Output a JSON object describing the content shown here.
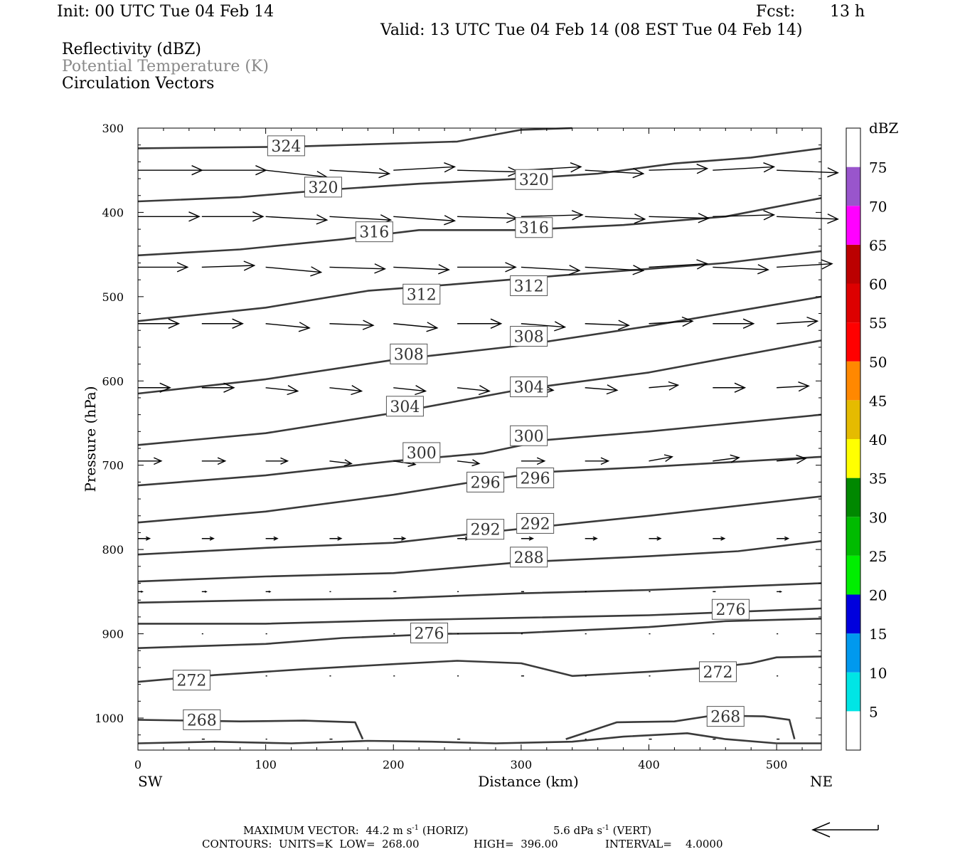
{
  "header": {
    "init": "Init: 00 UTC Tue 04 Feb 14",
    "fcst_label": "Fcst:",
    "fcst_value": "13 h",
    "valid": "Valid: 13 UTC Tue 04 Feb 14 (08 EST Tue 04 Feb 14)",
    "field1": "Reflectivity (dBZ)",
    "field2": "Potential Temperature (K)",
    "field3": "Circulation Vectors"
  },
  "footer": {
    "max_vector_label": "MAXIMUM VECTOR:",
    "max_horiz_value": "44.2",
    "max_horiz_unit": "m s",
    "max_horiz_exp": "-1",
    "max_horiz_tag": "(HORIZ)",
    "max_vert_value": "5.6",
    "max_vert_unit": "dPa s",
    "max_vert_exp": "-1",
    "max_vert_tag": "(VERT)",
    "contours_label": "CONTOURS:",
    "units": "UNITS=K",
    "low": "LOW=",
    "low_value": "268.00",
    "high": "HIGH=",
    "high_value": "396.00",
    "interval": "INTERVAL=",
    "interval_value": "4.0000"
  },
  "colors": {
    "contour": "#3a3a3a",
    "vector": "#000000",
    "label_border": "#555555"
  },
  "chart_data": {
    "type": "line",
    "xlabel": "Distance (km)",
    "ylabel": "Pressure (hPa)",
    "xlim": [
      0,
      535
    ],
    "ylim": [
      1038,
      300
    ],
    "xticks": [
      0,
      100,
      200,
      300,
      400,
      500
    ],
    "yticks": [
      300,
      400,
      500,
      600,
      700,
      800,
      900,
      1000
    ],
    "x_end_labels": {
      "left": "SW",
      "right": "NE"
    },
    "contour_interval": 4,
    "isentropes": [
      {
        "theta": 324,
        "points": [
          [
            0,
            324
          ],
          [
            120,
            322
          ],
          [
            250,
            316
          ],
          [
            300,
            302
          ],
          [
            340,
            300
          ]
        ],
        "labels": [
          [
            116,
            321
          ]
        ]
      },
      {
        "theta": 320,
        "points": [
          [
            0,
            387
          ],
          [
            80,
            382
          ],
          [
            150,
            373
          ],
          [
            220,
            366
          ],
          [
            300,
            360
          ],
          [
            360,
            354
          ],
          [
            420,
            342
          ],
          [
            480,
            335
          ],
          [
            535,
            324
          ]
        ],
        "labels": [
          [
            145,
            370
          ],
          [
            310,
            361
          ]
        ]
      },
      {
        "theta": 316,
        "points": [
          [
            0,
            451
          ],
          [
            80,
            444
          ],
          [
            160,
            432
          ],
          [
            220,
            421
          ],
          [
            300,
            421
          ],
          [
            380,
            415
          ],
          [
            460,
            405
          ],
          [
            535,
            383
          ]
        ],
        "labels": [
          [
            185,
            423
          ],
          [
            310,
            418
          ]
        ]
      },
      {
        "theta": 312,
        "points": [
          [
            0,
            529
          ],
          [
            100,
            513
          ],
          [
            180,
            493
          ],
          [
            250,
            485
          ],
          [
            330,
            475
          ],
          [
            400,
            467
          ],
          [
            460,
            460
          ],
          [
            535,
            446
          ]
        ],
        "labels": [
          [
            222,
            497
          ],
          [
            306,
            487
          ]
        ]
      },
      {
        "theta": 308,
        "points": [
          [
            0,
            615
          ],
          [
            100,
            598
          ],
          [
            200,
            575
          ],
          [
            300,
            558
          ],
          [
            400,
            535
          ],
          [
            535,
            500
          ]
        ],
        "labels": [
          [
            212,
            568
          ],
          [
            306,
            547
          ]
        ]
      },
      {
        "theta": 304,
        "points": [
          [
            0,
            676
          ],
          [
            100,
            662
          ],
          [
            200,
            638
          ],
          [
            300,
            610
          ],
          [
            400,
            590
          ],
          [
            535,
            552
          ]
        ],
        "labels": [
          [
            209,
            630
          ],
          [
            306,
            607
          ]
        ]
      },
      {
        "theta": 300,
        "points": [
          [
            0,
            724
          ],
          [
            100,
            712
          ],
          [
            200,
            695
          ],
          [
            270,
            686
          ],
          [
            320,
            670
          ],
          [
            400,
            660
          ],
          [
            535,
            640
          ]
        ],
        "labels": [
          [
            222,
            685
          ],
          [
            306,
            665
          ]
        ]
      },
      {
        "theta": 296,
        "points": [
          [
            0,
            768
          ],
          [
            100,
            755
          ],
          [
            200,
            735
          ],
          [
            270,
            718
          ],
          [
            320,
            708
          ],
          [
            400,
            702
          ],
          [
            535,
            690
          ]
        ],
        "labels": [
          [
            272,
            720
          ],
          [
            311,
            715
          ]
        ]
      },
      {
        "theta": 292,
        "points": [
          [
            0,
            806
          ],
          [
            100,
            798
          ],
          [
            200,
            792
          ],
          [
            270,
            780
          ],
          [
            400,
            760
          ],
          [
            535,
            737
          ]
        ],
        "labels": [
          [
            272,
            776
          ],
          [
            311,
            769
          ]
        ]
      },
      {
        "theta": 288,
        "points": [
          [
            0,
            838
          ],
          [
            100,
            832
          ],
          [
            200,
            828
          ],
          [
            300,
            815
          ],
          [
            400,
            808
          ],
          [
            470,
            802
          ],
          [
            535,
            790
          ]
        ],
        "labels": [
          [
            306,
            809
          ]
        ]
      },
      {
        "theta": 284,
        "points": [
          [
            0,
            863
          ],
          [
            100,
            860
          ],
          [
            200,
            858
          ],
          [
            300,
            852
          ],
          [
            400,
            848
          ],
          [
            535,
            840
          ]
        ],
        "labels": []
      },
      {
        "theta": 280,
        "points": [
          [
            0,
            888
          ],
          [
            100,
            888
          ],
          [
            200,
            884
          ],
          [
            300,
            881
          ],
          [
            400,
            878
          ],
          [
            535,
            870
          ]
        ],
        "labels": []
      },
      {
        "theta": 276,
        "points": [
          [
            0,
            917
          ],
          [
            100,
            912
          ],
          [
            160,
            905
          ],
          [
            240,
            900
          ],
          [
            300,
            899
          ],
          [
            400,
            892
          ],
          [
            460,
            885
          ],
          [
            535,
            882
          ]
        ],
        "labels": [
          [
            228,
            899
          ],
          [
            464,
            871
          ]
        ]
      },
      {
        "theta": 272,
        "points": [
          [
            0,
            957
          ],
          [
            60,
            949
          ],
          [
            130,
            942
          ],
          [
            200,
            936
          ],
          [
            250,
            932
          ],
          [
            300,
            935
          ],
          [
            340,
            950
          ],
          [
            400,
            945
          ],
          [
            450,
            940
          ],
          [
            480,
            935
          ],
          [
            500,
            928
          ],
          [
            535,
            927
          ]
        ],
        "labels": [
          [
            42,
            955
          ],
          [
            454,
            945
          ]
        ]
      },
      {
        "theta": 268,
        "points": [
          [
            0,
            1002
          ],
          [
            80,
            1004
          ],
          [
            130,
            1003
          ],
          [
            170,
            1005
          ],
          [
            176,
            1025
          ]
        ],
        "labels": [
          [
            50,
            1002
          ],
          [
            460,
            998
          ]
        ]
      },
      {
        "theta": 268,
        "points": [
          [
            335,
            1025
          ],
          [
            375,
            1005
          ],
          [
            420,
            1004
          ],
          [
            450,
            997
          ],
          [
            490,
            998
          ],
          [
            510,
            1002
          ],
          [
            514,
            1025
          ]
        ],
        "labels": []
      },
      {
        "theta": 268,
        "points": [
          [
            0,
            1030
          ],
          [
            60,
            1028
          ],
          [
            120,
            1030
          ],
          [
            180,
            1027
          ],
          [
            230,
            1028
          ],
          [
            280,
            1030
          ],
          [
            340,
            1028
          ],
          [
            380,
            1022
          ],
          [
            430,
            1018
          ],
          [
            460,
            1025
          ],
          [
            500,
            1030
          ],
          [
            535,
            1030
          ]
        ],
        "labels": []
      }
    ],
    "vector_rows": [
      {
        "p": 350,
        "x": [
          0,
          50,
          100,
          150,
          200,
          250,
          300,
          350,
          400,
          450,
          500
        ],
        "u": [
          44,
          44,
          42,
          41,
          42,
          42,
          41,
          40,
          40,
          42,
          42
        ],
        "w": [
          0,
          0,
          -0.8,
          -0.4,
          0.4,
          -0.2,
          0.4,
          -0.4,
          0.2,
          0.4,
          -0.3
        ]
      },
      {
        "p": 405,
        "x": [
          0,
          50,
          100,
          150,
          200,
          250,
          300,
          350,
          400,
          450,
          500
        ],
        "u": [
          42,
          42,
          42,
          42,
          42,
          41,
          42,
          41,
          41,
          42,
          42
        ],
        "w": [
          0,
          0,
          -0.4,
          -0.4,
          -0.5,
          -0.2,
          0.2,
          -0.3,
          -0.2,
          0.2,
          -0.3
        ]
      },
      {
        "p": 465,
        "x": [
          0,
          50,
          100,
          150,
          200,
          250,
          300,
          350,
          400,
          450,
          500
        ],
        "u": [
          34,
          36,
          38,
          38,
          38,
          40,
          40,
          40,
          40,
          38,
          38
        ],
        "w": [
          0,
          0.2,
          -0.6,
          -0.2,
          -0.3,
          0,
          -0.4,
          -0.4,
          0.4,
          -0.3,
          0.4
        ]
      },
      {
        "p": 532,
        "x": [
          0,
          50,
          100,
          150,
          200,
          250,
          300,
          350,
          400,
          450,
          500
        ],
        "u": [
          28,
          28,
          30,
          30,
          30,
          30,
          30,
          30,
          30,
          28,
          28
        ],
        "w": [
          0,
          0,
          -0.5,
          -0.2,
          -0.5,
          0,
          -0.4,
          -0.2,
          0.3,
          0,
          0.3
        ]
      },
      {
        "p": 608,
        "x": [
          0,
          50,
          100,
          150,
          200,
          250,
          300,
          350,
          400,
          450,
          500
        ],
        "u": [
          22,
          22,
          22,
          22,
          22,
          22,
          22,
          22,
          20,
          22,
          22
        ],
        "w": [
          0,
          0,
          -0.4,
          -0.4,
          -0.4,
          -0.4,
          -0.3,
          -0.3,
          0.3,
          0,
          0.2
        ]
      },
      {
        "p": 695,
        "x": [
          0,
          50,
          100,
          150,
          200,
          250,
          300,
          350,
          400,
          450,
          500
        ],
        "u": [
          16,
          16,
          15,
          15,
          15,
          15,
          16,
          16,
          16,
          18,
          20
        ],
        "w": [
          0,
          0,
          0,
          -0.3,
          -0.4,
          -0.3,
          0,
          0,
          0.5,
          0.4,
          0.3
        ]
      },
      {
        "p": 787,
        "x": [
          0,
          50,
          100,
          150,
          200,
          250,
          300,
          350,
          400,
          450,
          500
        ],
        "u": [
          8,
          8,
          8,
          8,
          8,
          8,
          8,
          8,
          8,
          8,
          8
        ],
        "w": [
          0,
          0,
          0,
          0,
          0,
          0,
          0,
          0,
          0,
          0,
          0
        ]
      },
      {
        "p": 850,
        "x": [
          0,
          50,
          100,
          150,
          200,
          250,
          300,
          350,
          400,
          450,
          500
        ],
        "u": [
          3,
          3,
          3,
          1,
          2,
          1,
          2,
          1,
          1,
          2,
          3
        ],
        "w": [
          0,
          0,
          0,
          0,
          0,
          0,
          0,
          0,
          0,
          0,
          0
        ]
      },
      {
        "p": 900,
        "x": [
          50,
          100,
          200,
          250,
          300,
          350,
          400,
          450,
          500
        ],
        "u": [
          1,
          1,
          1,
          1,
          1,
          1,
          1,
          1,
          1
        ],
        "w": [
          0,
          0,
          0,
          0,
          0,
          0,
          0,
          0,
          0
        ]
      },
      {
        "p": 950,
        "x": [
          100,
          150,
          200,
          250,
          300,
          350,
          400,
          450,
          500
        ],
        "u": [
          1,
          1,
          1,
          1,
          2,
          1,
          1,
          1,
          1
        ],
        "w": [
          0,
          0,
          0,
          0,
          0,
          0,
          0,
          0,
          0
        ]
      },
      {
        "p": 1025,
        "x": [
          50,
          100,
          150,
          250,
          350,
          400,
          450,
          500
        ],
        "u": [
          2,
          1,
          2,
          2,
          1,
          2,
          2,
          2
        ],
        "w": [
          0,
          0,
          0,
          0,
          0,
          0,
          0,
          0
        ]
      }
    ],
    "colorbar": {
      "label": "dBZ",
      "levels": [
        5,
        10,
        15,
        20,
        25,
        30,
        35,
        40,
        45,
        50,
        55,
        60,
        65,
        70,
        75
      ],
      "tick_labels": [
        "5",
        "10",
        "15",
        "20",
        "25",
        "30",
        "35",
        "40",
        "45",
        "50",
        "55",
        "60",
        "65",
        "70",
        "75"
      ],
      "bands": [
        {
          "from": 0,
          "to": 5,
          "color": "#ffffff"
        },
        {
          "from": 5,
          "to": 10,
          "color": "#00e5e5"
        },
        {
          "from": 10,
          "to": 15,
          "color": "#0099ee"
        },
        {
          "from": 15,
          "to": 20,
          "color": "#0000dd"
        },
        {
          "from": 20,
          "to": 25,
          "color": "#00ee00"
        },
        {
          "from": 25,
          "to": 30,
          "color": "#00bb00"
        },
        {
          "from": 30,
          "to": 35,
          "color": "#008800"
        },
        {
          "from": 35,
          "to": 40,
          "color": "#ffff00"
        },
        {
          "from": 40,
          "to": 45,
          "color": "#e5bb00"
        },
        {
          "from": 45,
          "to": 50,
          "color": "#ff8800"
        },
        {
          "from": 50,
          "to": 55,
          "color": "#ff0000"
        },
        {
          "from": 55,
          "to": 60,
          "color": "#dd0000"
        },
        {
          "from": 60,
          "to": 65,
          "color": "#bb0000"
        },
        {
          "from": 65,
          "to": 70,
          "color": "#ff00ff"
        },
        {
          "from": 70,
          "to": 75,
          "color": "#9955cc"
        },
        {
          "from": 75,
          "to": 80,
          "color": "#ffffff"
        }
      ]
    }
  }
}
